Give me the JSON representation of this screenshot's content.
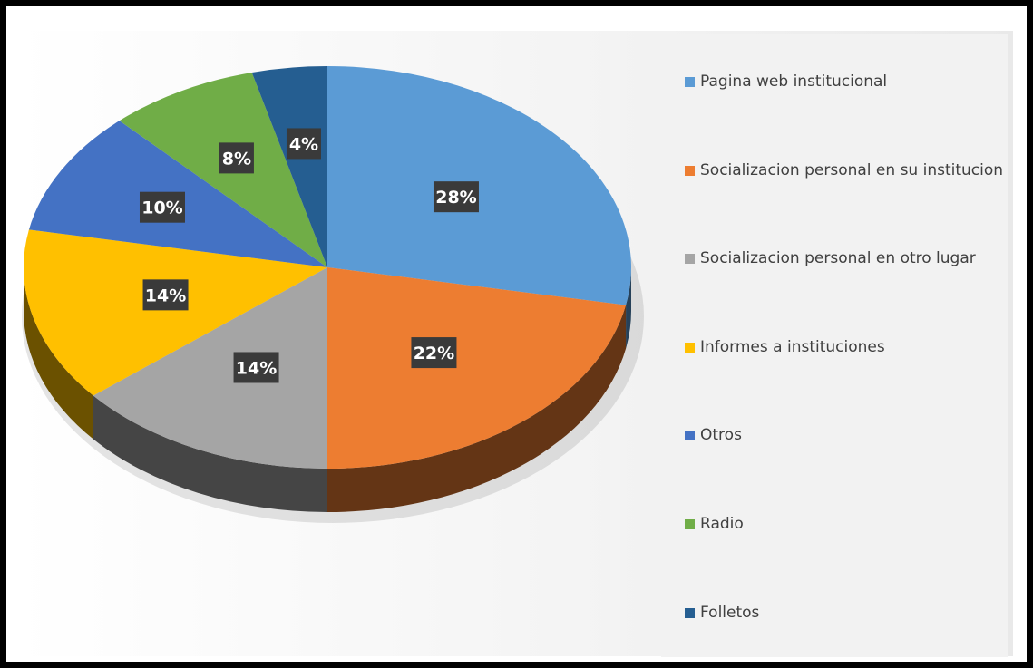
{
  "chart_data": {
    "type": "pie",
    "title": "",
    "categories": [
      "Pagina web institucional",
      "Socializacion personal en su institucion",
      "Socializacion personal en otro lugar",
      "Informes a instituciones",
      "Otros",
      "Radio",
      "Folletos"
    ],
    "values": [
      28,
      22,
      14,
      14,
      10,
      8,
      4
    ],
    "data_labels": [
      "28%",
      "22%",
      "14%",
      "14%",
      "10%",
      "8%",
      "4%"
    ],
    "colors": [
      "#5b9bd5",
      "#ed7d31",
      "#a5a5a5",
      "#ffc000",
      "#4472c4",
      "#70ad47",
      "#255e91"
    ],
    "legend_position": "right",
    "style": "3d-pie"
  }
}
